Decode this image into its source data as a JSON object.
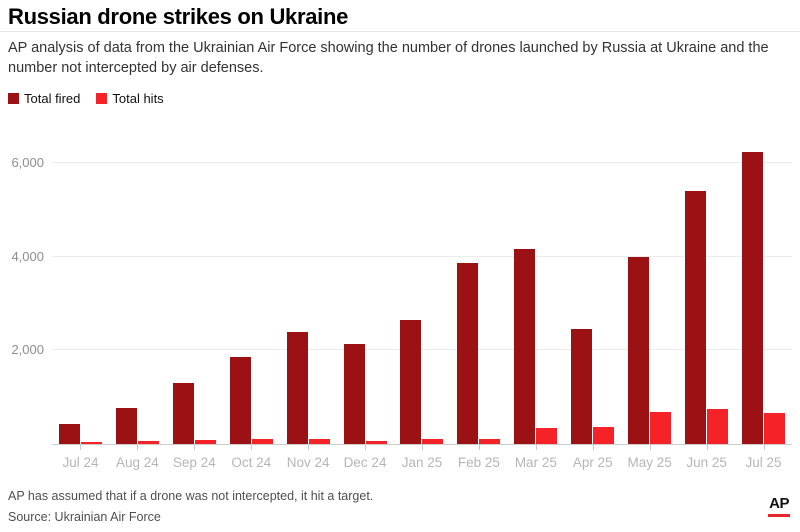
{
  "header": {
    "title": "Russian drone strikes on Ukraine",
    "subtitle": "AP analysis of data from the Ukrainian Air Force showing the number of drones launched by Russia at Ukraine and the number not intercepted by air defenses."
  },
  "legend": [
    {
      "label": "Total fired",
      "color": "#9c1114"
    },
    {
      "label": "Total hits",
      "color": "#f52328"
    }
  ],
  "chart_data": {
    "type": "bar",
    "title": "Russian drone strikes on Ukraine",
    "categories": [
      "Jul 24",
      "Aug 24",
      "Sep 24",
      "Oct 24",
      "Nov 24",
      "Dec 24",
      "Jan 25",
      "Feb 25",
      "Mar 25",
      "Apr 25",
      "May 25",
      "Jun 25",
      "Jul 25"
    ],
    "series": [
      {
        "name": "Total fired",
        "color": "#9c1114",
        "values": [
          420,
          770,
          1300,
          1870,
          2400,
          2140,
          2660,
          3880,
          4180,
          2450,
          4000,
          5420,
          6250
        ]
      },
      {
        "name": "Total hits",
        "color": "#f52328",
        "values": [
          40,
          60,
          90,
          115,
          105,
          60,
          100,
          100,
          335,
          370,
          680,
          740,
          670
        ]
      }
    ],
    "xlabel": "",
    "ylabel": "",
    "ylim": [
      0,
      6500
    ],
    "yticks": [
      {
        "value": 2000,
        "label": "2,000"
      },
      {
        "value": 4000,
        "label": "4,000"
      },
      {
        "value": 6000,
        "label": "6,000"
      }
    ],
    "grid": true,
    "legend_position": "top-left"
  },
  "footer": {
    "note": "AP has assumed that if a drone was not intercepted, it hit a target.",
    "source": "Source: Ukrainian Air Force",
    "logo": "AP"
  }
}
